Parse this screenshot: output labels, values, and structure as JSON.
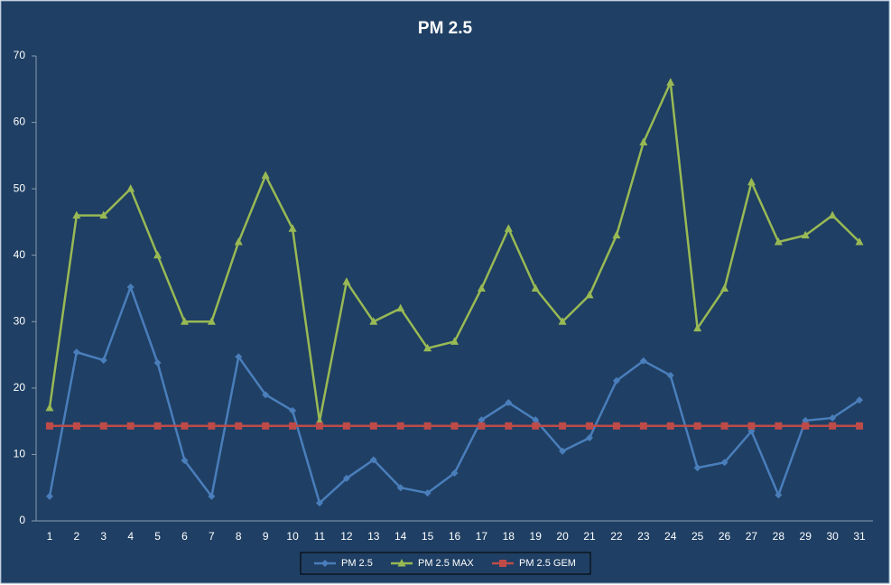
{
  "chart_data": {
    "type": "line",
    "title": "PM 2.5",
    "categories": [
      "1",
      "2",
      "3",
      "4",
      "5",
      "6",
      "7",
      "8",
      "9",
      "10",
      "11",
      "12",
      "13",
      "14",
      "15",
      "16",
      "17",
      "18",
      "19",
      "20",
      "21",
      "22",
      "23",
      "24",
      "25",
      "26",
      "27",
      "28",
      "29",
      "30",
      "31"
    ],
    "series": [
      {
        "name": "PM 2.5",
        "color": "#4a7ebb",
        "marker": "diamond",
        "values": [
          3.7,
          25.4,
          24.2,
          35.2,
          23.8,
          9.1,
          3.7,
          24.7,
          19.0,
          16.6,
          2.7,
          6.4,
          9.2,
          5.0,
          4.2,
          7.2,
          15.2,
          17.8,
          15.2,
          10.5,
          12.5,
          21.1,
          24.1,
          21.9,
          8.0,
          8.8,
          13.5,
          3.9,
          15.1,
          15.5,
          18.2
        ]
      },
      {
        "name": "PM 2.5 MAX",
        "color": "#98b954",
        "marker": "triangle",
        "values": [
          17,
          46,
          46,
          50,
          40,
          30,
          30,
          42,
          52,
          44,
          15,
          36,
          30,
          32,
          26,
          27,
          35,
          44,
          35,
          30,
          34,
          43,
          57,
          66,
          29,
          35,
          51,
          42,
          43,
          46,
          42
        ]
      },
      {
        "name": "PM 2.5 GEM",
        "color": "#be4b48",
        "marker": "square",
        "values": [
          14.3,
          14.3,
          14.3,
          14.3,
          14.3,
          14.3,
          14.3,
          14.3,
          14.3,
          14.3,
          14.3,
          14.3,
          14.3,
          14.3,
          14.3,
          14.3,
          14.3,
          14.3,
          14.3,
          14.3,
          14.3,
          14.3,
          14.3,
          14.3,
          14.3,
          14.3,
          14.3,
          14.3,
          14.3,
          14.3,
          14.3
        ]
      }
    ],
    "ylim": [
      0,
      70
    ],
    "yticks": [
      0,
      10,
      20,
      30,
      40,
      50,
      60,
      70
    ],
    "grid": false,
    "legend": "bottom"
  }
}
